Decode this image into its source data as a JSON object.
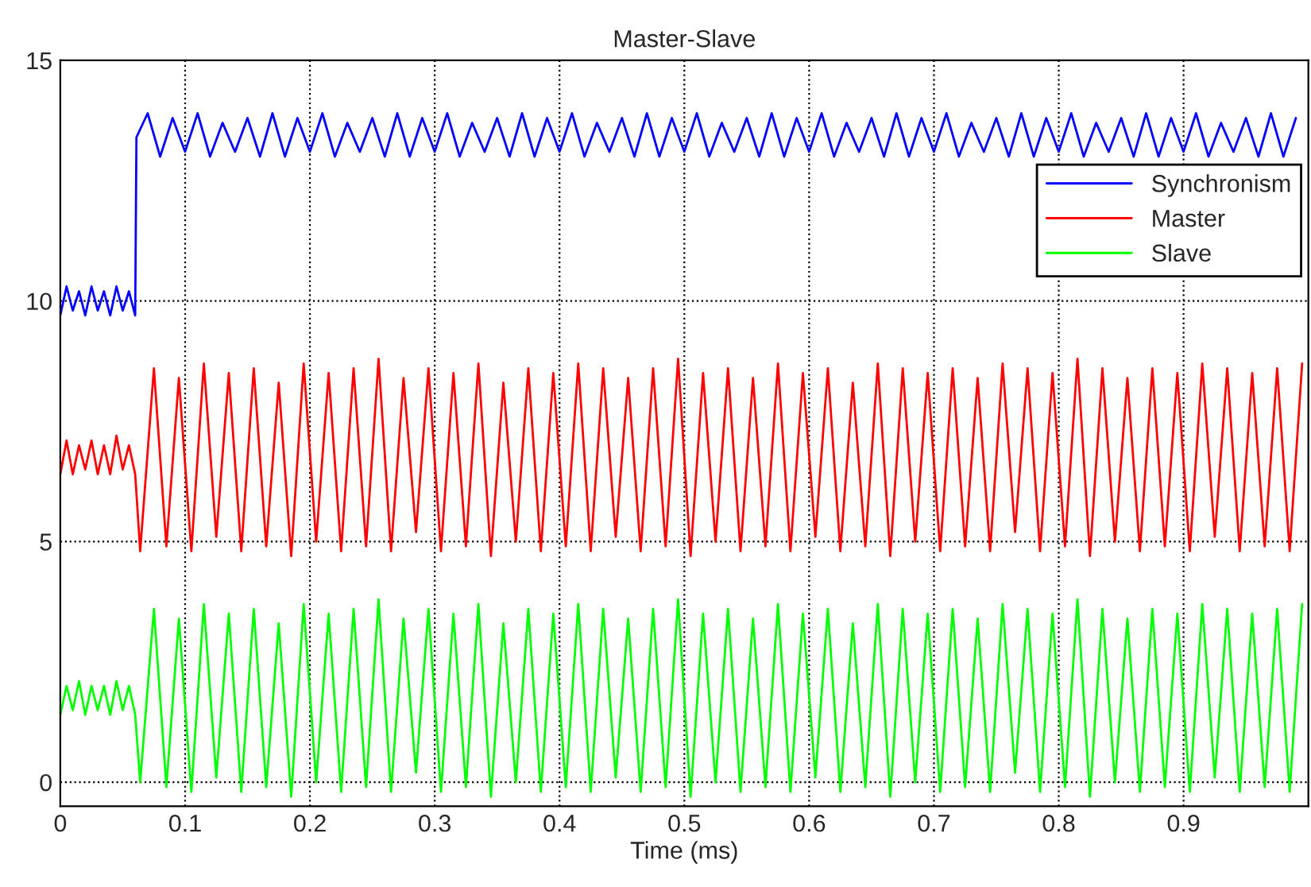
{
  "chart_data": {
    "type": "line",
    "title": "Master-Slave",
    "xlabel": "Time (ms)",
    "xlim": [
      0,
      1
    ],
    "xticks": [
      0,
      0.1,
      0.2,
      0.3,
      0.4,
      0.5,
      0.6,
      0.7,
      0.8,
      0.9
    ],
    "ylim": [
      -0.5,
      15
    ],
    "yticks": [
      0,
      5,
      10,
      15
    ],
    "grid": true,
    "legend": "upper right",
    "line_style": "solid",
    "marker": "none",
    "series": [
      {
        "name": "Synchronism",
        "color": "#0000ff",
        "x": [
          0,
          0.005,
          0.01,
          0.015,
          0.02,
          0.025,
          0.03,
          0.035,
          0.04,
          0.045,
          0.05,
          0.055,
          0.06,
          0.061,
          0.07,
          0.08,
          0.09,
          0.1,
          0.11,
          0.12,
          0.13,
          0.14,
          0.15,
          0.16,
          0.17,
          0.18,
          0.19,
          0.2,
          0.21,
          0.22,
          0.23,
          0.24,
          0.25,
          0.26,
          0.27,
          0.28,
          0.29,
          0.3,
          0.31,
          0.32,
          0.33,
          0.34,
          0.35,
          0.36,
          0.37,
          0.38,
          0.39,
          0.4,
          0.41,
          0.42,
          0.43,
          0.44,
          0.45,
          0.46,
          0.47,
          0.48,
          0.49,
          0.5,
          0.51,
          0.52,
          0.53,
          0.54,
          0.55,
          0.56,
          0.57,
          0.58,
          0.59,
          0.6,
          0.61,
          0.62,
          0.63,
          0.64,
          0.65,
          0.66,
          0.67,
          0.68,
          0.69,
          0.7,
          0.71,
          0.72,
          0.73,
          0.74,
          0.75,
          0.76,
          0.77,
          0.78,
          0.79,
          0.8,
          0.81,
          0.82,
          0.83,
          0.84,
          0.85,
          0.86,
          0.87,
          0.88,
          0.89,
          0.9,
          0.91,
          0.92,
          0.93,
          0.94,
          0.95,
          0.96,
          0.97,
          0.98,
          0.99
        ],
        "values": [
          9.7,
          10.3,
          9.8,
          10.2,
          9.7,
          10.3,
          9.8,
          10.2,
          9.7,
          10.3,
          9.8,
          10.2,
          9.7,
          13.4,
          13.9,
          13.0,
          13.8,
          13.1,
          13.9,
          13.0,
          13.7,
          13.1,
          13.8,
          13.0,
          13.9,
          13.0,
          13.8,
          13.1,
          13.9,
          13.0,
          13.7,
          13.1,
          13.8,
          13.0,
          13.9,
          13.0,
          13.8,
          13.1,
          13.9,
          13.0,
          13.7,
          13.1,
          13.8,
          13.0,
          13.9,
          13.0,
          13.8,
          13.1,
          13.9,
          13.0,
          13.7,
          13.1,
          13.8,
          13.0,
          13.9,
          13.0,
          13.8,
          13.1,
          13.9,
          13.0,
          13.7,
          13.1,
          13.8,
          13.0,
          13.9,
          13.0,
          13.8,
          13.1,
          13.9,
          13.0,
          13.7,
          13.1,
          13.8,
          13.0,
          13.9,
          13.0,
          13.8,
          13.1,
          13.9,
          13.0,
          13.7,
          13.1,
          13.8,
          13.0,
          13.9,
          13.0,
          13.8,
          13.1,
          13.9,
          13.0,
          13.7,
          13.1,
          13.8,
          13.0,
          13.9,
          13.0,
          13.8,
          13.1,
          13.9,
          13.0,
          13.7,
          13.1,
          13.8,
          13.0,
          13.9,
          13.0,
          13.8
        ]
      },
      {
        "name": "Master",
        "color": "#ff0000",
        "x": [
          0,
          0.005,
          0.01,
          0.015,
          0.02,
          0.025,
          0.03,
          0.035,
          0.04,
          0.045,
          0.05,
          0.055,
          0.06,
          0.064,
          0.075,
          0.085,
          0.095,
          0.105,
          0.115,
          0.125,
          0.135,
          0.145,
          0.155,
          0.165,
          0.175,
          0.185,
          0.195,
          0.205,
          0.215,
          0.225,
          0.235,
          0.245,
          0.255,
          0.265,
          0.275,
          0.285,
          0.295,
          0.305,
          0.315,
          0.325,
          0.335,
          0.345,
          0.355,
          0.365,
          0.375,
          0.385,
          0.395,
          0.405,
          0.415,
          0.425,
          0.435,
          0.445,
          0.455,
          0.465,
          0.475,
          0.485,
          0.495,
          0.505,
          0.515,
          0.525,
          0.535,
          0.545,
          0.555,
          0.565,
          0.575,
          0.585,
          0.595,
          0.605,
          0.615,
          0.625,
          0.635,
          0.645,
          0.655,
          0.665,
          0.675,
          0.685,
          0.695,
          0.705,
          0.715,
          0.725,
          0.735,
          0.745,
          0.755,
          0.765,
          0.775,
          0.785,
          0.795,
          0.805,
          0.815,
          0.825,
          0.835,
          0.845,
          0.855,
          0.865,
          0.875,
          0.885,
          0.895,
          0.905,
          0.915,
          0.925,
          0.935,
          0.945,
          0.955,
          0.965,
          0.975,
          0.985,
          0.995
        ],
        "values": [
          6.4,
          7.1,
          6.4,
          7.0,
          6.5,
          7.1,
          6.4,
          7.0,
          6.4,
          7.2,
          6.5,
          7.0,
          6.4,
          4.8,
          8.6,
          4.9,
          8.4,
          4.8,
          8.7,
          5.1,
          8.5,
          4.8,
          8.6,
          4.9,
          8.3,
          4.7,
          8.7,
          5.0,
          8.5,
          4.8,
          8.6,
          4.9,
          8.8,
          4.8,
          8.4,
          5.2,
          8.6,
          4.8,
          8.5,
          4.9,
          8.7,
          4.7,
          8.3,
          5.0,
          8.6,
          4.8,
          8.5,
          4.9,
          8.7,
          4.8,
          8.6,
          5.1,
          8.4,
          4.8,
          8.6,
          4.9,
          8.8,
          4.7,
          8.5,
          5.0,
          8.6,
          4.8,
          8.4,
          4.9,
          8.7,
          4.8,
          8.5,
          5.1,
          8.6,
          4.8,
          8.3,
          4.9,
          8.7,
          4.7,
          8.6,
          5.0,
          8.5,
          4.8,
          8.6,
          4.9,
          8.4,
          4.8,
          8.7,
          5.2,
          8.6,
          4.8,
          8.5,
          4.9,
          8.8,
          4.7,
          8.6,
          5.0,
          8.4,
          4.8,
          8.6,
          4.9,
          8.5,
          4.8,
          8.7,
          5.1,
          8.6,
          4.8,
          8.5,
          4.9,
          8.6,
          4.8,
          8.7
        ]
      },
      {
        "name": "Slave",
        "color": "#00ff00",
        "x": [
          0,
          0.005,
          0.01,
          0.015,
          0.02,
          0.025,
          0.03,
          0.035,
          0.04,
          0.045,
          0.05,
          0.055,
          0.06,
          0.064,
          0.075,
          0.085,
          0.095,
          0.105,
          0.115,
          0.125,
          0.135,
          0.145,
          0.155,
          0.165,
          0.175,
          0.185,
          0.195,
          0.205,
          0.215,
          0.225,
          0.235,
          0.245,
          0.255,
          0.265,
          0.275,
          0.285,
          0.295,
          0.305,
          0.315,
          0.325,
          0.335,
          0.345,
          0.355,
          0.365,
          0.375,
          0.385,
          0.395,
          0.405,
          0.415,
          0.425,
          0.435,
          0.445,
          0.455,
          0.465,
          0.475,
          0.485,
          0.495,
          0.505,
          0.515,
          0.525,
          0.535,
          0.545,
          0.555,
          0.565,
          0.575,
          0.585,
          0.595,
          0.605,
          0.615,
          0.625,
          0.635,
          0.645,
          0.655,
          0.665,
          0.675,
          0.685,
          0.695,
          0.705,
          0.715,
          0.725,
          0.735,
          0.745,
          0.755,
          0.765,
          0.775,
          0.785,
          0.795,
          0.805,
          0.815,
          0.825,
          0.835,
          0.845,
          0.855,
          0.865,
          0.875,
          0.885,
          0.895,
          0.905,
          0.915,
          0.925,
          0.935,
          0.945,
          0.955,
          0.965,
          0.975,
          0.985,
          0.995
        ],
        "values": [
          1.4,
          2.0,
          1.5,
          2.1,
          1.4,
          2.0,
          1.5,
          2.0,
          1.4,
          2.1,
          1.5,
          2.0,
          1.4,
          0.0,
          3.6,
          -0.1,
          3.4,
          -0.2,
          3.7,
          0.1,
          3.5,
          -0.2,
          3.6,
          -0.1,
          3.3,
          -0.3,
          3.7,
          0.0,
          3.5,
          -0.2,
          3.6,
          -0.1,
          3.8,
          -0.2,
          3.4,
          0.2,
          3.6,
          -0.2,
          3.5,
          -0.1,
          3.7,
          -0.3,
          3.3,
          0.0,
          3.6,
          -0.2,
          3.5,
          -0.1,
          3.7,
          -0.2,
          3.6,
          0.1,
          3.4,
          -0.2,
          3.6,
          -0.1,
          3.8,
          -0.3,
          3.5,
          0.0,
          3.6,
          -0.2,
          3.4,
          -0.1,
          3.7,
          -0.2,
          3.5,
          0.1,
          3.6,
          -0.2,
          3.3,
          -0.1,
          3.7,
          -0.3,
          3.6,
          0.0,
          3.5,
          -0.2,
          3.6,
          -0.1,
          3.4,
          -0.2,
          3.7,
          0.2,
          3.6,
          -0.2,
          3.5,
          -0.1,
          3.8,
          -0.3,
          3.6,
          0.0,
          3.4,
          -0.2,
          3.6,
          -0.1,
          3.5,
          -0.2,
          3.7,
          0.1,
          3.6,
          -0.2,
          3.5,
          -0.1,
          3.6,
          -0.2,
          3.7
        ]
      }
    ]
  }
}
